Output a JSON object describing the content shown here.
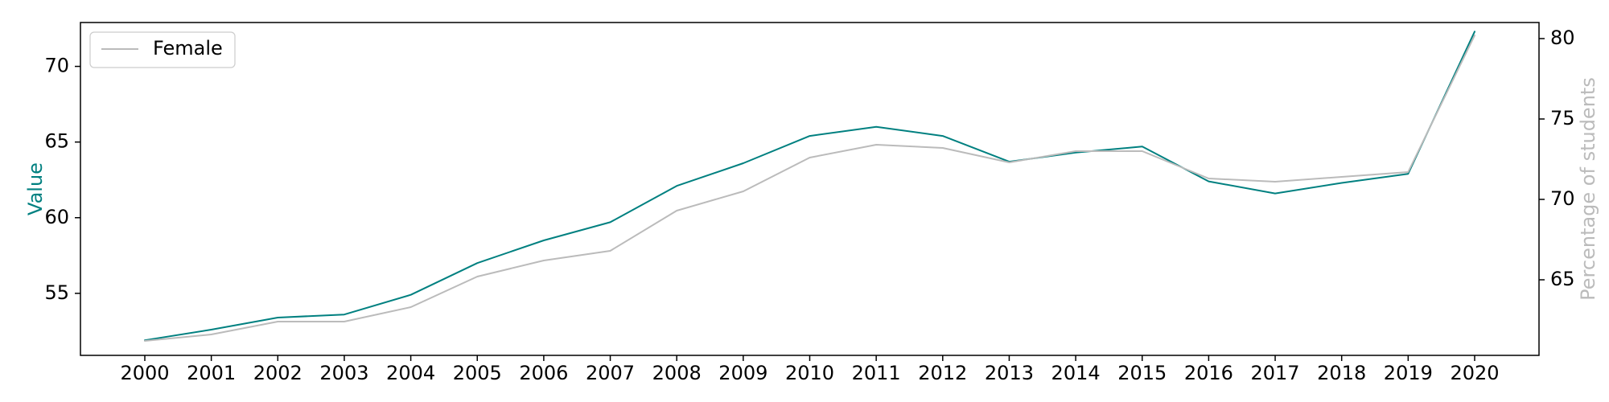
{
  "chart_data": {
    "type": "line",
    "x": [
      "2000",
      "2001",
      "2002",
      "2003",
      "2004",
      "2005",
      "2006",
      "2007",
      "2008",
      "2009",
      "2010",
      "2011",
      "2012",
      "2013",
      "2014",
      "2015",
      "2016",
      "2017",
      "2018",
      "2019",
      "2020"
    ],
    "series": [
      {
        "name": "",
        "axis": "left",
        "color": "#008080",
        "values": [
          51.9,
          52.6,
          53.4,
          53.6,
          54.9,
          57.0,
          58.5,
          59.7,
          62.1,
          63.6,
          65.4,
          66.0,
          65.4,
          63.7,
          64.3,
          64.7,
          62.4,
          61.6,
          62.3,
          62.9,
          72.3
        ]
      },
      {
        "name": "Female",
        "axis": "right",
        "color": "#bbbbbb",
        "values": [
          61.2,
          61.6,
          62.4,
          62.4,
          63.3,
          65.2,
          66.2,
          66.8,
          69.3,
          70.5,
          72.6,
          73.4,
          73.2,
          72.3,
          73.0,
          73.0,
          71.3,
          71.1,
          71.4,
          71.7,
          80.2
        ]
      }
    ],
    "y_left": {
      "label": "Value",
      "ticks": [
        55,
        60,
        65,
        70
      ],
      "range": [
        50.9,
        72.9
      ],
      "label_color": "#008080"
    },
    "y_right": {
      "label": "Percentage of students",
      "ticks": [
        65,
        70,
        75,
        80
      ],
      "range": [
        60.3,
        81.0
      ],
      "label_color": "#bbbbbb"
    },
    "legend": {
      "entries": [
        "Female"
      ],
      "position": "top-left"
    },
    "grid": false
  }
}
